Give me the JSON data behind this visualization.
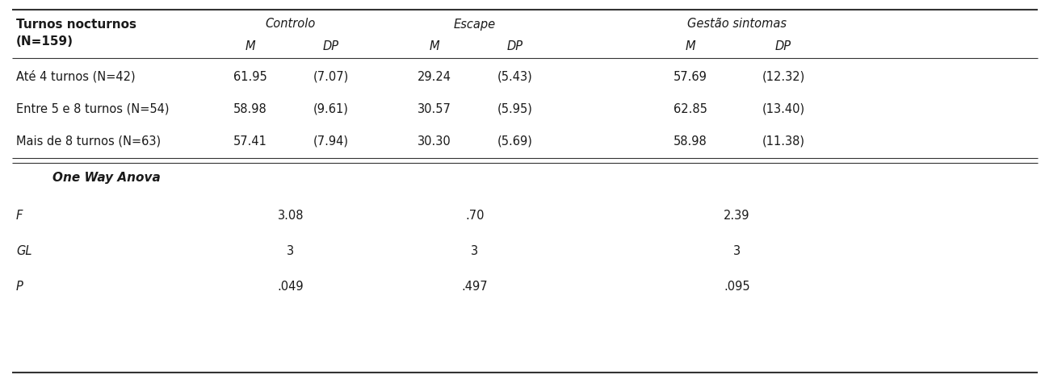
{
  "header_left": "Turnos nocturnos",
  "header_left2": "(N=159)",
  "col_groups": [
    "Controlo",
    "Escape",
    "Gestão sintomas"
  ],
  "col_subheaders": [
    "M",
    "DP",
    "M",
    "DP",
    "M",
    "DP"
  ],
  "rows": [
    {
      "label": "Até 4 turnos (N=42)",
      "values": [
        "61.95",
        "(7.07)",
        "29.24",
        "(5.43)",
        "57.69",
        "(12.32)"
      ]
    },
    {
      "label": "Entre 5 e 8 turnos (N=54)",
      "values": [
        "58.98",
        "(9.61)",
        "30.57",
        "(5.95)",
        "62.85",
        "(13.40)"
      ]
    },
    {
      "label": "Mais de 8 turnos (N=63)",
      "values": [
        "57.41",
        "(7.94)",
        "30.30",
        "(5.69)",
        "58.98",
        "(11.38)"
      ]
    }
  ],
  "anova_label": "One Way Anova",
  "anova_rows": [
    {
      "label": "F",
      "values": [
        "3.08",
        ".70",
        "2.39"
      ]
    },
    {
      "label": "GL",
      "values": [
        "3",
        "3",
        "3"
      ]
    },
    {
      "label": "P",
      "values": [
        ".049",
        ".497",
        ".095"
      ]
    }
  ],
  "bg_color": "#ffffff",
  "text_color": "#1a1a1a",
  "line_color": "#333333",
  "font_size": 10.5
}
